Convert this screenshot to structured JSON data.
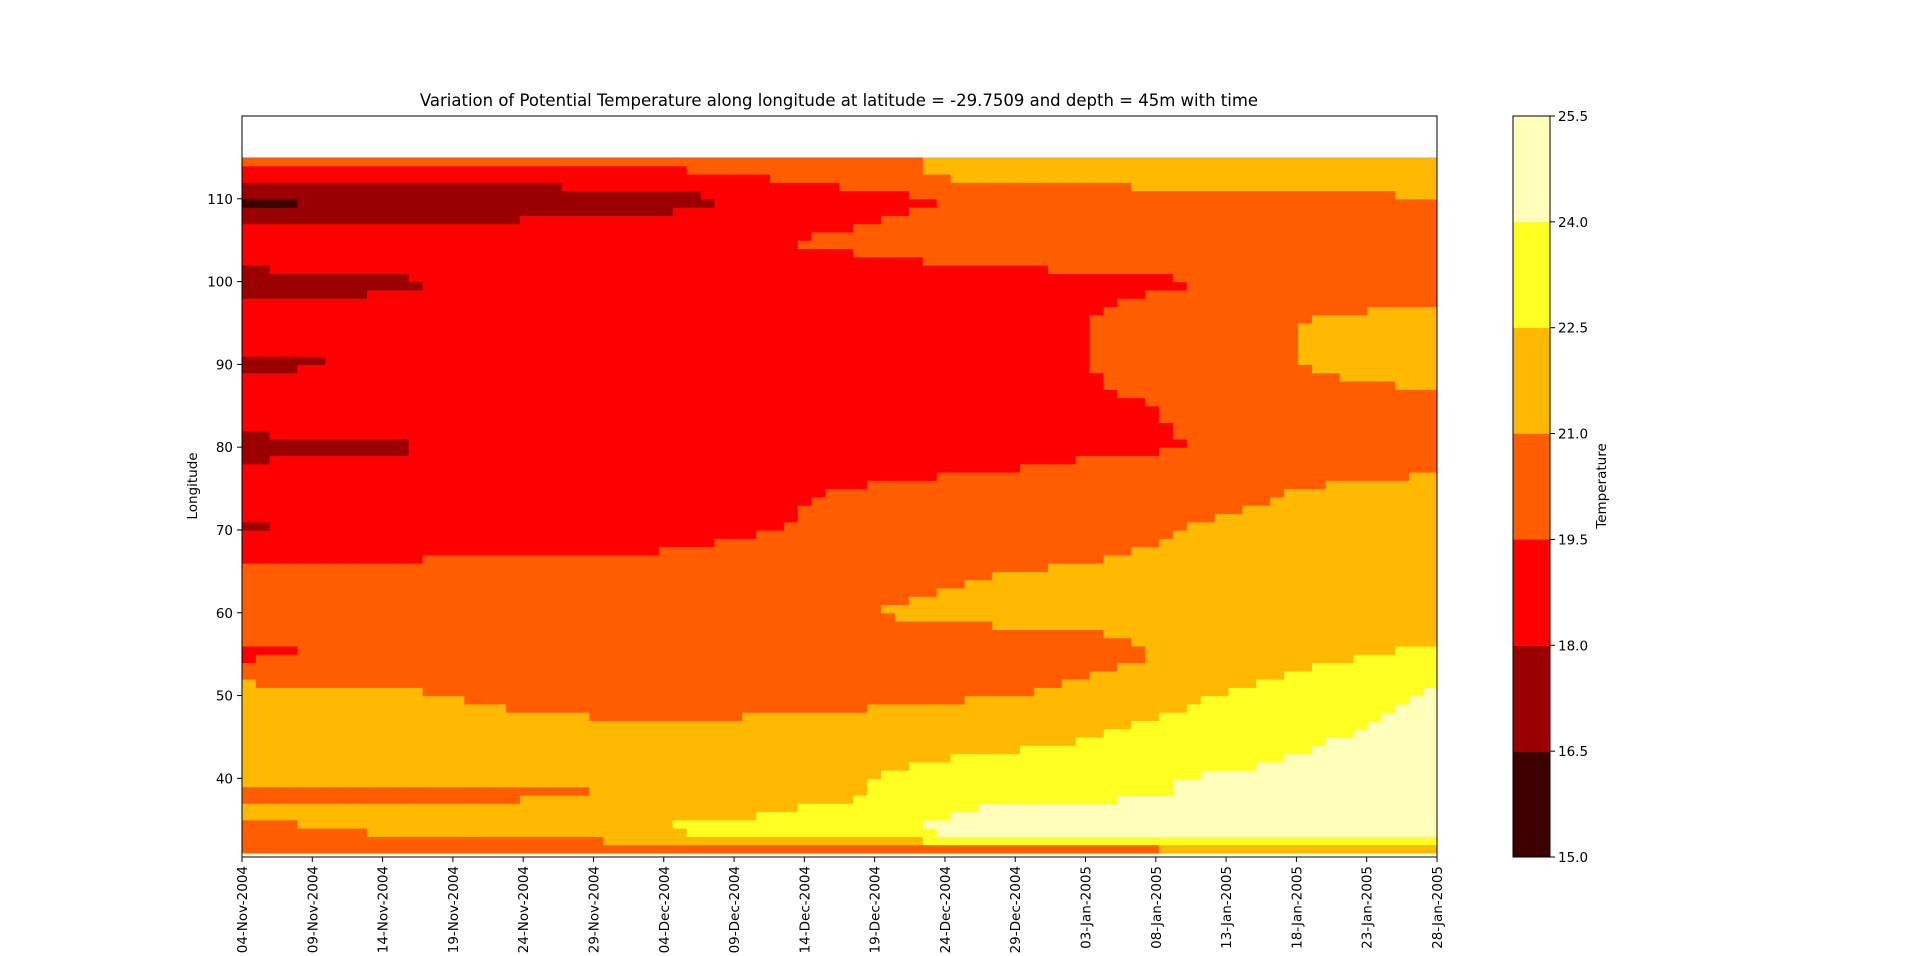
{
  "chart_data": {
    "type": "heatmap",
    "subtype": "filled-contour",
    "title": "Variation of Potential Temperature along longitude at latitude = -29.7509 and depth = 45m with time",
    "xlabel": "",
    "ylabel": "Longitude",
    "colorbar_label": "Temperature",
    "x_ticks": [
      "04-Nov-2004",
      "09-Nov-2004",
      "14-Nov-2004",
      "19-Nov-2004",
      "24-Nov-2004",
      "29-Nov-2004",
      "04-Dec-2004",
      "09-Dec-2004",
      "14-Dec-2004",
      "19-Dec-2004",
      "24-Dec-2004",
      "29-Dec-2004",
      "03-Jan-2005",
      "08-Jan-2005",
      "13-Jan-2005",
      "18-Jan-2005",
      "23-Jan-2005",
      "28-Jan-2005"
    ],
    "xlim": [
      "04-Nov-2004",
      "28-Jan-2005"
    ],
    "y_ticks": [
      40,
      50,
      60,
      70,
      80,
      90,
      100,
      110
    ],
    "ylim": [
      30.5,
      120
    ],
    "data_lon_range": [
      31,
      115
    ],
    "levels": [
      15.0,
      16.5,
      18.0,
      19.5,
      21.0,
      22.5,
      24.0,
      25.5
    ],
    "level_colors": [
      "#3d0000",
      "#9a0000",
      "#ff0000",
      "#ff5d00",
      "#ffb900",
      "#ffff22",
      "#ffffbb"
    ],
    "samples": {
      "times": [
        "04-Nov-2004",
        "04-Dec-2004",
        "29-Dec-2004",
        "28-Jan-2005"
      ],
      "longitude": [
        31,
        32,
        33,
        34,
        36,
        38,
        40,
        45,
        50,
        55,
        60,
        65,
        70,
        75,
        80,
        85,
        90,
        95,
        100,
        105,
        110,
        113,
        115
      ],
      "temperature": [
        [
          20.0,
          20.4,
          20.4,
          20.5,
          21.5,
          20.5,
          21.5,
          21.5,
          21.8,
          19.2,
          20.5,
          20.0,
          17.8,
          19.0,
          17.5,
          19.0,
          17.8,
          18.5,
          17.5,
          19.0,
          16.0,
          19.0,
          21.0
        ],
        [
          20.0,
          20.2,
          22.0,
          22.8,
          21.5,
          21.0,
          21.2,
          21.5,
          20.2,
          20.5,
          20.3,
          20.0,
          19.0,
          19.0,
          18.5,
          19.0,
          18.5,
          18.5,
          18.5,
          19.0,
          17.5,
          18.8,
          21.0
        ],
        [
          20.0,
          21.5,
          24.5,
          24.5,
          24.5,
          23.5,
          23.5,
          22.0,
          21.0,
          20.0,
          21.5,
          21.0,
          20.5,
          20.0,
          19.0,
          19.0,
          19.0,
          19.0,
          19.0,
          20.5,
          20.0,
          21.8,
          21.0
        ],
        [
          20.0,
          23.0,
          24.8,
          25.0,
          25.0,
          24.8,
          24.8,
          24.6,
          24.2,
          23.0,
          21.0,
          21.5,
          21.8,
          21.5,
          20.2,
          20.5,
          22.0,
          22.0,
          20.0,
          20.5,
          21.0,
          21.5,
          21.0
        ]
      ]
    },
    "legend": "colorbar-right"
  }
}
